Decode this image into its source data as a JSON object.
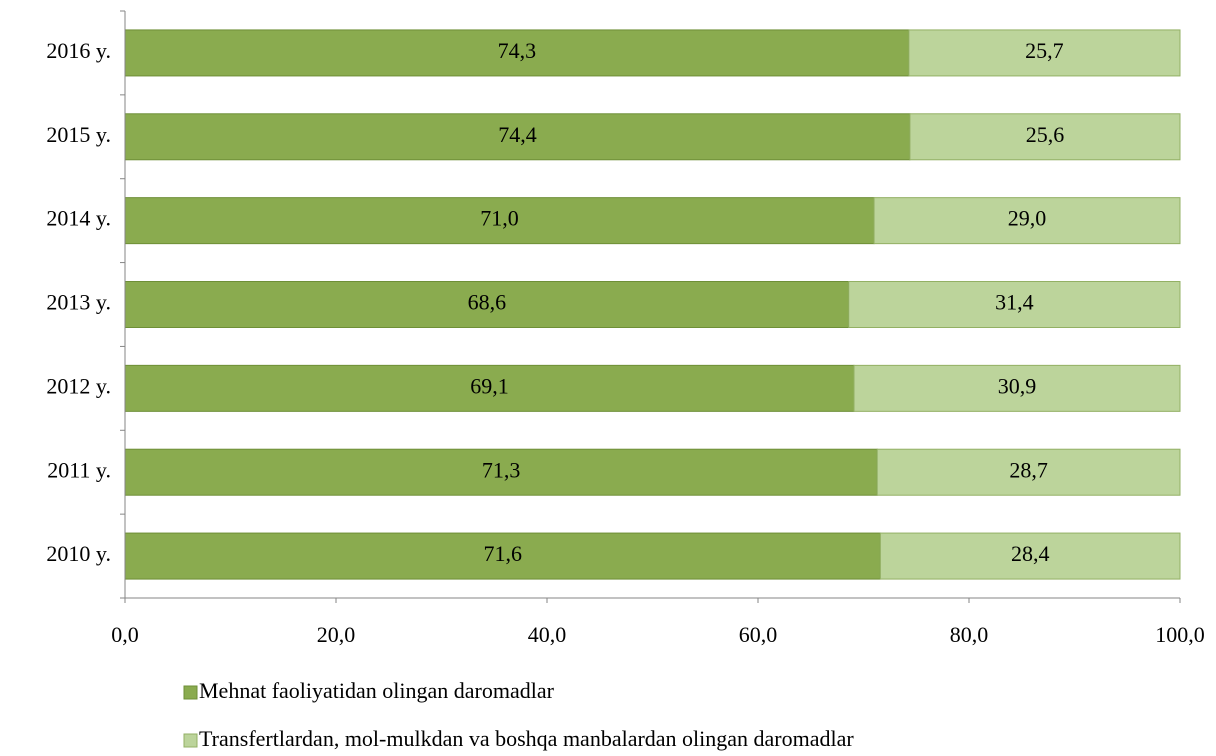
{
  "chart_data": {
    "type": "stacked_hbar",
    "categories": [
      "2016 y.",
      "2015 y.",
      "2014 y.",
      "2013 y.",
      "2012 y.",
      "2011 y.",
      "2010 y."
    ],
    "series": [
      {
        "name": "Mehnat faoliyatidan olingan daromadlar",
        "color": "#8aab4f",
        "values": [
          74.3,
          74.4,
          71.0,
          68.6,
          69.1,
          71.3,
          71.6
        ],
        "value_labels": [
          "74,3",
          "74,4",
          "71,0",
          "68,6",
          "69,1",
          "71,3",
          "71,6"
        ]
      },
      {
        "name": "Transfertlardan, mol-mulkdan va boshqa manbalardan olingan daromadlar",
        "color": "#bcd49b",
        "values": [
          25.7,
          25.6,
          29.0,
          31.4,
          30.9,
          28.7,
          28.4
        ],
        "value_labels": [
          "25,7",
          "25,6",
          "29,0",
          "31,4",
          "30,9",
          "28,7",
          "28,4"
        ]
      }
    ],
    "xlim": [
      0,
      100
    ],
    "xticks": [
      {
        "value": 0,
        "label": "0,0"
      },
      {
        "value": 20,
        "label": "20,0"
      },
      {
        "value": 40,
        "label": "40,0"
      },
      {
        "value": 60,
        "label": "60,0"
      },
      {
        "value": 80,
        "label": "80,0"
      },
      {
        "value": 100,
        "label": "100,0"
      }
    ],
    "legend": "bottom"
  }
}
